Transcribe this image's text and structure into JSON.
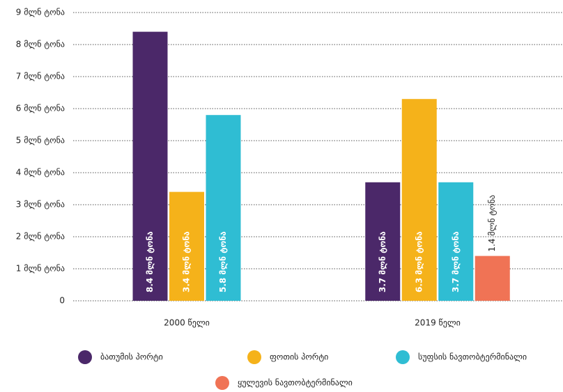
{
  "chart_data": {
    "type": "bar",
    "categories": [
      "2000 წელი",
      "2019 წელი"
    ],
    "series": [
      {
        "name": "ბათუმის პორტი",
        "color": "#4b2869",
        "values": [
          8.4,
          3.7
        ],
        "value_labels": [
          "8.4 მლნ ტონა",
          "3.7 მლნ ტონა"
        ]
      },
      {
        "name": "ფოთის პორტი",
        "color": "#f5b21a",
        "values": [
          3.4,
          6.3
        ],
        "value_labels": [
          "3.4 მლნ ტონა",
          "6.3 მლნ ტონა"
        ]
      },
      {
        "name": "სუფსის ნავთობტერმინალი",
        "color": "#2fbdd3",
        "values": [
          5.8,
          3.7
        ],
        "value_labels": [
          "5.8 მლნ ტონა",
          "3.7 მლნ ტონა"
        ]
      },
      {
        "name": "ყულევის ნავთობტერმინალი",
        "color": "#f07355",
        "values": [
          null,
          1.4
        ],
        "value_labels": [
          null,
          "1.4 მლნ ტონა"
        ]
      }
    ],
    "ylim": [
      0,
      9
    ],
    "yticks": [
      0,
      {
        "value": 1,
        "label": "1 მლნ ტონა"
      },
      {
        "value": 2,
        "label": "2 მლნ ტონა"
      },
      {
        "value": 3,
        "label": "3 მლნ ტონა"
      },
      {
        "value": 4,
        "label": "4 მლნ ტონა"
      },
      {
        "value": 5,
        "label": "5 მლნ ტონა"
      },
      {
        "value": 6,
        "label": "6 მლნ ტონა"
      },
      {
        "value": 7,
        "label": "7 მლნ ტონა"
      },
      {
        "value": 8,
        "label": "8 მლნ ტონა"
      },
      {
        "value": 9,
        "label": "9 მლნ ტონა"
      }
    ],
    "grid": true
  }
}
